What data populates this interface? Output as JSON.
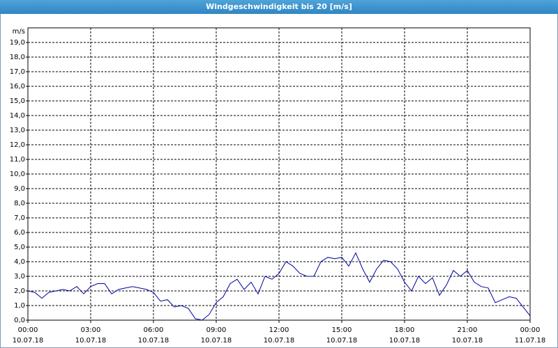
{
  "chart_data": {
    "type": "line",
    "title": "Windgeschwindigkeit bis 20 [m/s]",
    "y_unit": "m/s",
    "x": [
      0,
      20,
      40,
      60,
      80,
      100,
      120,
      140,
      160,
      180,
      200,
      220,
      240,
      260,
      280,
      300,
      320,
      340,
      360,
      380,
      400,
      420,
      440,
      460,
      480,
      500,
      520,
      540,
      560,
      580,
      600,
      620,
      640,
      660,
      680,
      700,
      720,
      740,
      760,
      780,
      800,
      820,
      840,
      860,
      880,
      900,
      920,
      940,
      960,
      980,
      1000,
      1020,
      1040,
      1060,
      1080,
      1100,
      1120,
      1140,
      1160,
      1180,
      1200,
      1220,
      1240,
      1260,
      1280,
      1300,
      1320,
      1340,
      1360,
      1380,
      1400,
      1420,
      1440
    ],
    "series": [
      {
        "name": "Windgeschwindigkeit",
        "color": "#0000a0",
        "values": [
          2.0,
          1.9,
          1.5,
          1.9,
          2.0,
          2.1,
          2.0,
          2.3,
          1.8,
          2.3,
          2.5,
          2.5,
          1.8,
          2.1,
          2.2,
          2.3,
          2.2,
          2.1,
          1.9,
          1.3,
          1.4,
          0.9,
          1.0,
          0.8,
          0.1,
          0.0,
          0.4,
          1.2,
          1.6,
          2.5,
          2.8,
          2.1,
          2.6,
          1.8,
          3.0,
          2.8,
          3.2,
          4.0,
          3.7,
          3.2,
          3.0,
          3.0,
          4.0,
          4.3,
          4.2,
          4.3,
          3.7,
          4.6,
          3.5,
          2.6,
          3.5,
          4.1,
          4.0,
          3.5,
          2.6,
          2.0,
          3.0,
          2.5,
          2.9,
          1.7,
          2.4,
          3.4,
          3.0,
          3.4,
          2.6,
          2.3,
          2.2,
          1.2,
          1.4,
          1.6,
          1.5,
          0.9,
          0.3
        ]
      }
    ],
    "xlim": [
      0,
      1440
    ],
    "xticks": [
      {
        "value": 0,
        "label": "00:00"
      },
      {
        "value": 180,
        "label": "03:00"
      },
      {
        "value": 360,
        "label": "06:00"
      },
      {
        "value": 540,
        "label": "09:00"
      },
      {
        "value": 720,
        "label": "12:00"
      },
      {
        "value": 900,
        "label": "15:00"
      },
      {
        "value": 1080,
        "label": "18:00"
      },
      {
        "value": 1260,
        "label": "21:00"
      },
      {
        "value": 1440,
        "label": "00:00"
      }
    ],
    "xtick_dates": [
      "10.07.18",
      "10.07.18",
      "10.07.18",
      "10.07.18",
      "10.07.18",
      "10.07.18",
      "10.07.18",
      "10.07.18",
      "11.07.18"
    ],
    "ylim": [
      0,
      20
    ],
    "yticks": [
      {
        "value": 0,
        "label": "0,0"
      },
      {
        "value": 1,
        "label": "1,0"
      },
      {
        "value": 2,
        "label": "2,0"
      },
      {
        "value": 3,
        "label": "3,0"
      },
      {
        "value": 4,
        "label": "4,0"
      },
      {
        "value": 5,
        "label": "5,0"
      },
      {
        "value": 6,
        "label": "6,0"
      },
      {
        "value": 7,
        "label": "7,0"
      },
      {
        "value": 8,
        "label": "8,0"
      },
      {
        "value": 9,
        "label": "9,0"
      },
      {
        "value": 10,
        "label": "10,0"
      },
      {
        "value": 11,
        "label": "11,0"
      },
      {
        "value": 12,
        "label": "12,0"
      },
      {
        "value": 13,
        "label": "13,0"
      },
      {
        "value": 14,
        "label": "14,0"
      },
      {
        "value": 15,
        "label": "15,0"
      },
      {
        "value": 16,
        "label": "16,0"
      },
      {
        "value": 17,
        "label": "17,0"
      },
      {
        "value": 18,
        "label": "18,0"
      },
      {
        "value": 19,
        "label": "19,0"
      }
    ],
    "grid": true
  }
}
